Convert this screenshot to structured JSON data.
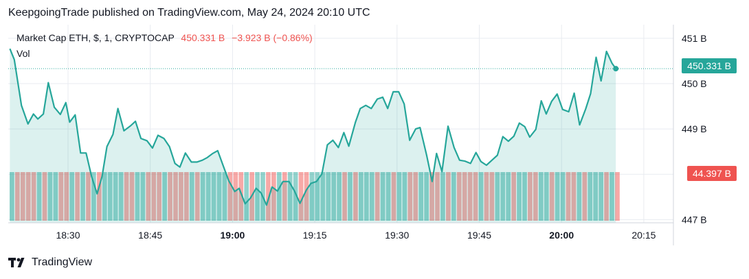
{
  "header": {
    "published": "KeepgoingTrade published on TradingView.com, May 24, 2024 20:10 UTC"
  },
  "legend": {
    "symbol": "Market Cap ETH, $, 1, CRYPTOCAP",
    "value": "450.331 B",
    "change": "−3.923 B (−0.86%)",
    "volume_label": "Vol"
  },
  "badges": {
    "price": "450.331 B",
    "volume": "44.397 B"
  },
  "brand": {
    "name": "TradingView"
  },
  "colors": {
    "line": "#26a69a",
    "up_bar": "#26a69a",
    "down_bar": "#ef5350",
    "grid": "#e8ebf0"
  },
  "chart_data": {
    "type": "line",
    "y_ticks": [
      "451 B",
      "450 B",
      "449 B",
      "448 B",
      "447 B"
    ],
    "y_tick_values": [
      451,
      450,
      449,
      448,
      447
    ],
    "ylim": [
      446.93,
      451.3
    ],
    "x_ticks": [
      "18:30",
      "18:45",
      "19:00",
      "19:15",
      "19:30",
      "19:45",
      "20:00",
      "20:15"
    ],
    "x_tick_minutes": [
      30,
      45,
      60,
      75,
      90,
      105,
      120,
      135
    ],
    "bold_x_ticks": [
      "19:00",
      "20:00"
    ],
    "xlim": [
      19.1,
      140.4
    ],
    "series": [
      {
        "values": [
          [
            19.4,
            450.77
          ],
          [
            20.2,
            450.53
          ],
          [
            21.5,
            449.52
          ],
          [
            22.7,
            449.11
          ],
          [
            23.7,
            449.33
          ],
          [
            24.5,
            449.22
          ],
          [
            25.5,
            449.33
          ],
          [
            26.4,
            450.02
          ],
          [
            27.5,
            449.48
          ],
          [
            28.6,
            449.32
          ],
          [
            29.6,
            449.58
          ],
          [
            30.3,
            449.15
          ],
          [
            31.3,
            449.31
          ],
          [
            32.3,
            448.47
          ],
          [
            33.3,
            448.47
          ],
          [
            34.3,
            447.95
          ],
          [
            35.3,
            447.57
          ],
          [
            36.2,
            447.95
          ],
          [
            37.1,
            448.61
          ],
          [
            38.2,
            448.88
          ],
          [
            39.1,
            449.45
          ],
          [
            40.2,
            448.96
          ],
          [
            41.4,
            449.07
          ],
          [
            42.3,
            449.17
          ],
          [
            43.3,
            448.79
          ],
          [
            44.4,
            448.74
          ],
          [
            45.4,
            448.58
          ],
          [
            46.4,
            448.86
          ],
          [
            47.5,
            448.79
          ],
          [
            48.5,
            448.61
          ],
          [
            49.5,
            448.24
          ],
          [
            50.4,
            448.16
          ],
          [
            51.4,
            448.47
          ],
          [
            52.5,
            448.27
          ],
          [
            53.5,
            448.27
          ],
          [
            54.5,
            448.31
          ],
          [
            55.4,
            448.37
          ],
          [
            56.4,
            448.46
          ],
          [
            57.3,
            448.52
          ],
          [
            58.3,
            448.19
          ],
          [
            59.3,
            447.86
          ],
          [
            60.4,
            447.62
          ],
          [
            61.2,
            447.69
          ],
          [
            62.3,
            447.35
          ],
          [
            63.3,
            447.48
          ],
          [
            64.3,
            447.69
          ],
          [
            65.2,
            447.59
          ],
          [
            66.2,
            447.32
          ],
          [
            67.2,
            447.72
          ],
          [
            68.2,
            447.63
          ],
          [
            69.2,
            447.84
          ],
          [
            70.3,
            447.84
          ],
          [
            71.3,
            447.63
          ],
          [
            72.3,
            447.36
          ],
          [
            73.5,
            447.66
          ],
          [
            74.3,
            447.8
          ],
          [
            75.3,
            447.84
          ],
          [
            76.3,
            448.01
          ],
          [
            77.3,
            448.65
          ],
          [
            78.3,
            448.75
          ],
          [
            79.3,
            448.59
          ],
          [
            80.3,
            448.92
          ],
          [
            81.2,
            448.62
          ],
          [
            82.4,
            449.14
          ],
          [
            83.3,
            449.45
          ],
          [
            84.3,
            449.52
          ],
          [
            85.3,
            449.45
          ],
          [
            86.4,
            449.66
          ],
          [
            87.4,
            449.7
          ],
          [
            88.3,
            449.45
          ],
          [
            89.3,
            449.82
          ],
          [
            90.3,
            449.82
          ],
          [
            91.3,
            449.55
          ],
          [
            92.3,
            448.75
          ],
          [
            93.4,
            449.0
          ],
          [
            94.2,
            449.03
          ],
          [
            95.4,
            448.42
          ],
          [
            96.4,
            447.84
          ],
          [
            97.2,
            448.46
          ],
          [
            98.2,
            448.06
          ],
          [
            99.3,
            449.06
          ],
          [
            100.4,
            448.59
          ],
          [
            101.4,
            448.31
          ],
          [
            102.4,
            448.29
          ],
          [
            103.4,
            448.24
          ],
          [
            104.4,
            448.48
          ],
          [
            105.3,
            448.28
          ],
          [
            106.3,
            448.2
          ],
          [
            107.3,
            448.31
          ],
          [
            108.3,
            448.42
          ],
          [
            109.3,
            448.83
          ],
          [
            110.3,
            448.73
          ],
          [
            111.3,
            448.84
          ],
          [
            112.3,
            449.13
          ],
          [
            113.3,
            449.05
          ],
          [
            114.2,
            448.82
          ],
          [
            115.3,
            448.99
          ],
          [
            116.3,
            449.62
          ],
          [
            117.2,
            449.33
          ],
          [
            118.2,
            449.61
          ],
          [
            119.2,
            449.77
          ],
          [
            120.2,
            449.43
          ],
          [
            121.3,
            449.38
          ],
          [
            122.3,
            449.79
          ],
          [
            123.3,
            449.09
          ],
          [
            124.4,
            449.44
          ],
          [
            125.3,
            449.78
          ],
          [
            126.3,
            450.58
          ],
          [
            127.2,
            450.06
          ],
          [
            128.2,
            450.71
          ],
          [
            129.2,
            450.45
          ],
          [
            129.9,
            450.33
          ]
        ]
      }
    ],
    "last_value": 450.331
  }
}
